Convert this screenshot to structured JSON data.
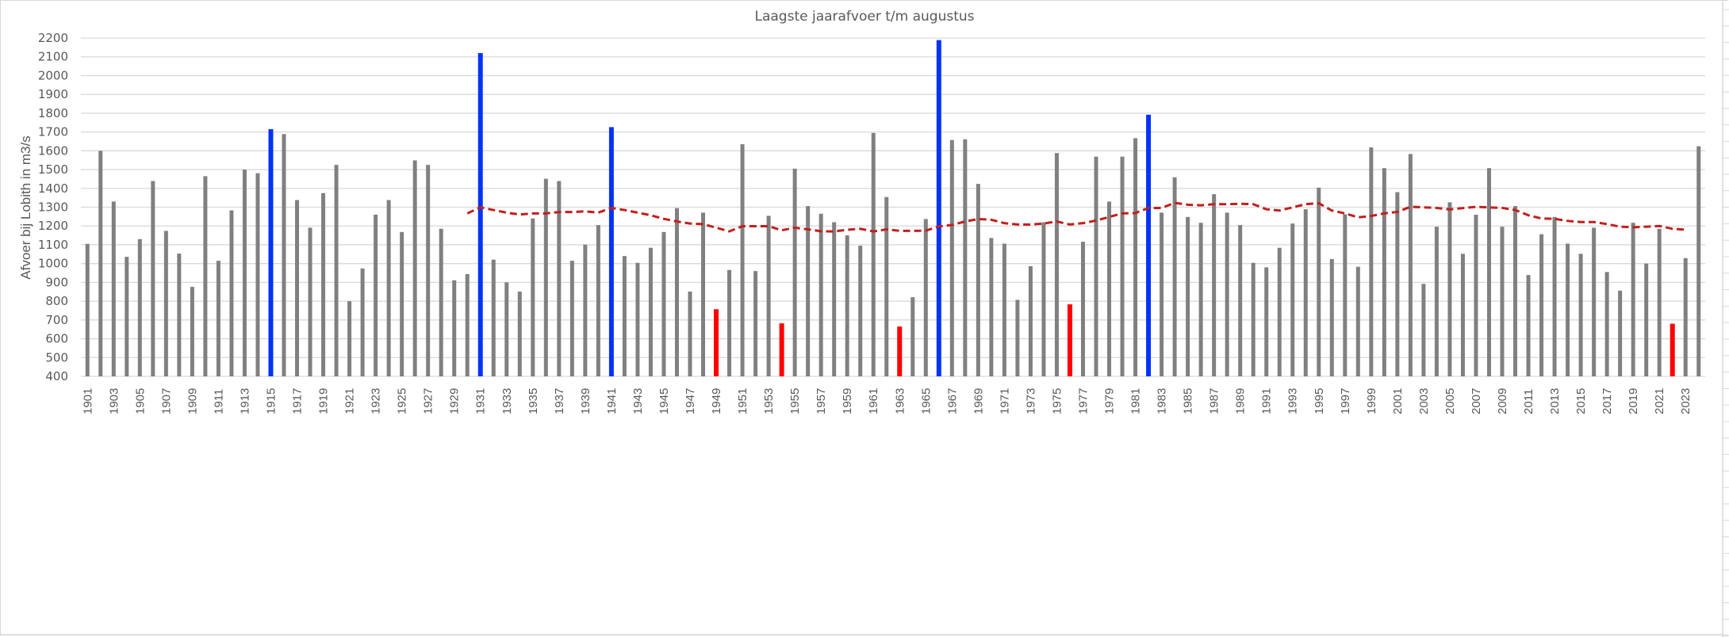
{
  "chart_data": {
    "type": "bar",
    "title": "Laagste jaarafvoer t/m augustus",
    "xlabel": "",
    "ylabel": "Afvoer bij Lobith in m3/s",
    "ylim": [
      400,
      2200
    ],
    "yticks": [
      400,
      500,
      600,
      700,
      800,
      900,
      1000,
      1100,
      1200,
      1300,
      1400,
      1500,
      1600,
      1700,
      1800,
      1900,
      2000,
      2100,
      2200
    ],
    "grid": true,
    "legend": "none",
    "x_start": 1901,
    "x_tick_step": 2,
    "categories": [
      1901,
      1902,
      1903,
      1904,
      1905,
      1906,
      1907,
      1908,
      1909,
      1910,
      1911,
      1912,
      1913,
      1914,
      1915,
      1916,
      1917,
      1918,
      1919,
      1920,
      1921,
      1922,
      1923,
      1924,
      1925,
      1926,
      1927,
      1928,
      1929,
      1930,
      1931,
      1932,
      1933,
      1934,
      1935,
      1936,
      1937,
      1938,
      1939,
      1940,
      1941,
      1942,
      1943,
      1944,
      1945,
      1946,
      1947,
      1948,
      1949,
      1950,
      1951,
      1952,
      1953,
      1954,
      1955,
      1956,
      1957,
      1958,
      1959,
      1960,
      1961,
      1962,
      1963,
      1964,
      1965,
      1966,
      1967,
      1968,
      1969,
      1970,
      1971,
      1972,
      1973,
      1974,
      1975,
      1976,
      1977,
      1978,
      1979,
      1980,
      1981,
      1982,
      1983,
      1984,
      1985,
      1986,
      1987,
      1988,
      1989,
      1990,
      1991,
      1992,
      1993,
      1994,
      1995,
      1996,
      1997,
      1998,
      1999,
      2000,
      2001,
      2002,
      2003,
      2004,
      2005,
      2006,
      2007,
      2008,
      2009,
      2010,
      2011,
      2012,
      2013,
      2014,
      2015,
      2016,
      2017,
      2018,
      2019,
      2020,
      2021,
      2022,
      2023,
      2024
    ],
    "values": [
      1105,
      1600,
      1330,
      1036,
      1130,
      1439,
      1174,
      1053,
      876,
      1465,
      1015,
      1283,
      1500,
      1481,
      1715,
      1689,
      1338,
      1191,
      1375,
      1525,
      800,
      974,
      1260,
      1338,
      1168,
      1549,
      1525,
      1185,
      911,
      944,
      2120,
      1021,
      900,
      851,
      1240,
      1451,
      1439,
      1015,
      1101,
      1205,
      1726,
      1040,
      1004,
      1084,
      1168,
      1295,
      851,
      1271,
      757,
      966,
      1635,
      960,
      1254,
      682,
      1505,
      1306,
      1265,
      1220,
      1150,
      1095,
      1695,
      1354,
      665,
      821,
      1237,
      2189,
      1657,
      1661,
      1424,
      1136,
      1106,
      807,
      986,
      1220,
      1588,
      783,
      1116,
      1569,
      1330,
      1569,
      1667,
      1792,
      1271,
      1459,
      1248,
      1217,
      1369,
      1271,
      1205,
      1004,
      980,
      1084,
      1213,
      1289,
      1404,
      1024,
      1262,
      983,
      1618,
      1508,
      1380,
      1583,
      892,
      1196,
      1326,
      1052,
      1260,
      1508,
      1196,
      1306,
      939,
      1156,
      1248,
      1106,
      1052,
      1191,
      955,
      856,
      1217,
      1000,
      1185,
      680,
      1029,
      1624
    ],
    "colors": {
      "default": "#808080",
      "high": "#0433f5",
      "low": "#ff0000",
      "trend": "#c0201e"
    },
    "highlight_high": [
      1915,
      1931,
      1941,
      1966,
      1982
    ],
    "highlight_low": [
      1949,
      1954,
      1963,
      1976,
      2022
    ],
    "trend": {
      "style": "dashed",
      "x": [
        1930,
        1931,
        1932,
        1933,
        1934,
        1935,
        1936,
        1937,
        1938,
        1939,
        1940,
        1941,
        1942,
        1943,
        1944,
        1945,
        1946,
        1947,
        1948,
        1949,
        1950,
        1951,
        1952,
        1953,
        1954,
        1955,
        1956,
        1957,
        1958,
        1959,
        1960,
        1961,
        1962,
        1963,
        1964,
        1965,
        1966,
        1967,
        1968,
        1969,
        1970,
        1971,
        1972,
        1973,
        1974,
        1975,
        1976,
        1977,
        1978,
        1979,
        1980,
        1981,
        1982,
        1983,
        1984,
        1985,
        1986,
        1987,
        1988,
        1989,
        1990,
        1991,
        1992,
        1993,
        1994,
        1995,
        1996,
        1997,
        1998,
        1999,
        2000,
        2001,
        2002,
        2003,
        2004,
        2005,
        2006,
        2007,
        2008,
        2009,
        2010,
        2011,
        2012,
        2013,
        2014,
        2015,
        2016,
        2017,
        2018,
        2019,
        2020,
        2021,
        2022,
        2023
      ],
      "values": [
        1267,
        1299,
        1285,
        1271,
        1261,
        1267,
        1267,
        1274,
        1274,
        1278,
        1271,
        1296,
        1285,
        1271,
        1257,
        1238,
        1224,
        1213,
        1210,
        1191,
        1171,
        1199,
        1199,
        1199,
        1177,
        1191,
        1182,
        1172,
        1171,
        1180,
        1185,
        1171,
        1182,
        1174,
        1174,
        1175,
        1198,
        1205,
        1224,
        1237,
        1233,
        1215,
        1208,
        1208,
        1213,
        1224,
        1208,
        1215,
        1229,
        1248,
        1267,
        1269,
        1296,
        1296,
        1323,
        1313,
        1310,
        1316,
        1316,
        1318,
        1316,
        1289,
        1282,
        1299,
        1316,
        1321,
        1282,
        1267,
        1246,
        1253,
        1267,
        1275,
        1302,
        1299,
        1296,
        1288,
        1295,
        1302,
        1299,
        1296,
        1285,
        1257,
        1240,
        1238,
        1227,
        1221,
        1221,
        1210,
        1196,
        1193,
        1196,
        1200,
        1185,
        1180
      ]
    }
  }
}
